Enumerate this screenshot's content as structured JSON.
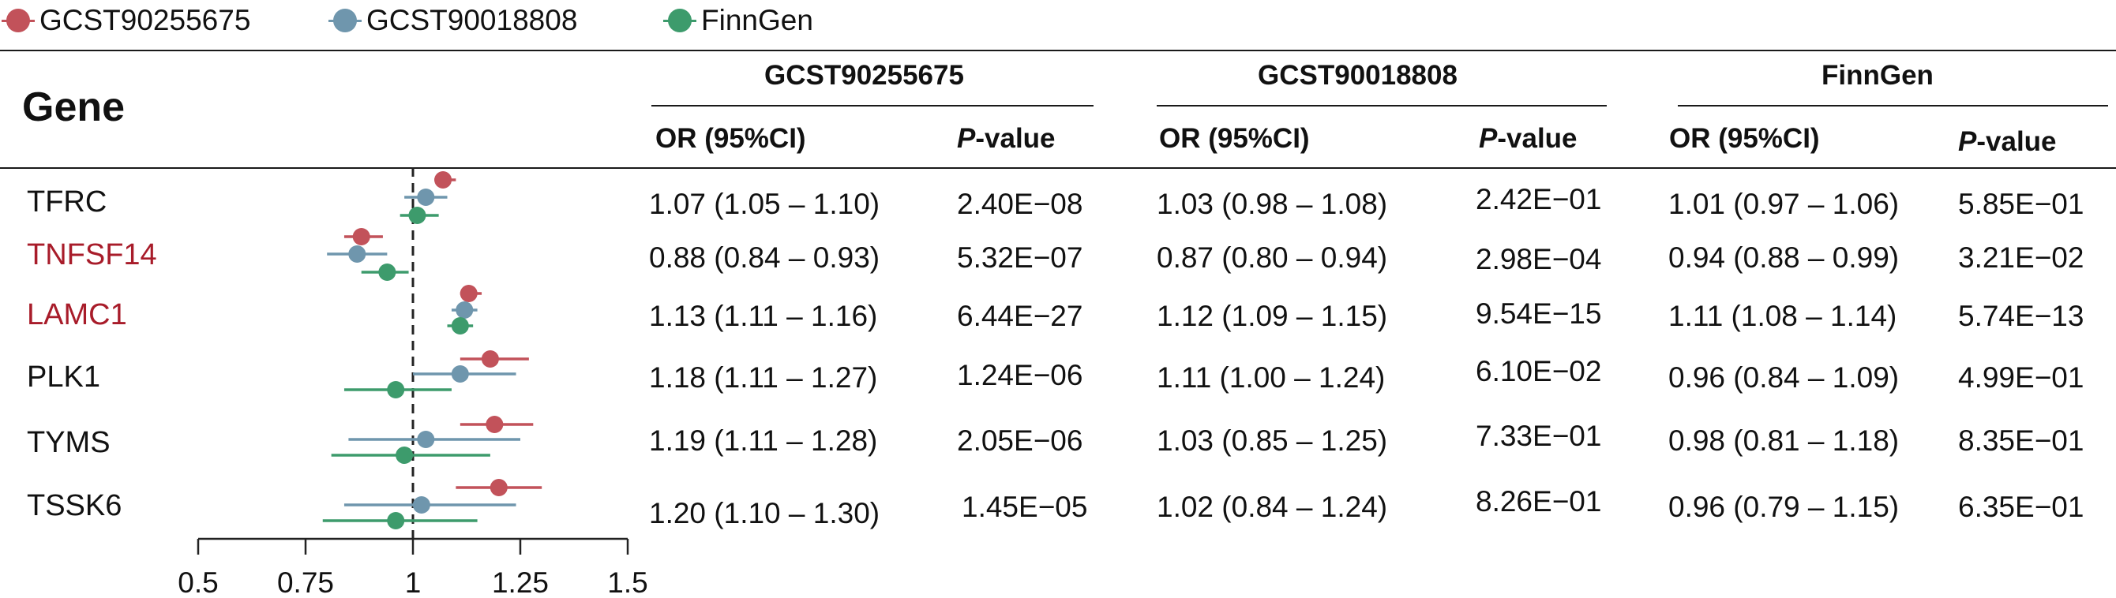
{
  "legend": [
    {
      "label": "GCST90255675",
      "color": "#c2525a"
    },
    {
      "label": "GCST90018808",
      "color": "#6f96ad"
    },
    {
      "label": "FinnGen",
      "color": "#3d9b6c"
    }
  ],
  "header": {
    "gene": "Gene",
    "studies": [
      "GCST90255675",
      "GCST90018808",
      "FinnGen"
    ],
    "or_label": "OR (95%CI)",
    "p_italic": "P",
    "p_rest": "-value"
  },
  "rows": [
    {
      "gene": "TFRC",
      "gene_color": "#111111",
      "cells": [
        [
          "1.07 (1.05 – 1.10)",
          "2.40E−08"
        ],
        [
          "1.03 (0.98 – 1.08)",
          "2.42E−01"
        ],
        [
          "1.01 (0.97 – 1.06)",
          "5.85E−01"
        ]
      ]
    },
    {
      "gene": "TNFSF14",
      "gene_color": "#a81c2a",
      "cells": [
        [
          "0.88 (0.84 – 0.93)",
          "5.32E−07"
        ],
        [
          "0.87 (0.80 – 0.94)",
          "2.98E−04"
        ],
        [
          "0.94 (0.88 – 0.99)",
          "3.21E−02"
        ]
      ]
    },
    {
      "gene": "LAMC1",
      "gene_color": "#a81c2a",
      "cells": [
        [
          "1.13 (1.11 – 1.16)",
          "6.44E−27"
        ],
        [
          "1.12 (1.09 – 1.15)",
          "9.54E−15"
        ],
        [
          "1.11 (1.08 – 1.14)",
          "5.74E−13"
        ]
      ]
    },
    {
      "gene": "PLK1",
      "gene_color": "#111111",
      "cells": [
        [
          "1.18 (1.11 – 1.27)",
          "1.24E−06"
        ],
        [
          "1.11 (1.00 – 1.24)",
          "6.10E−02"
        ],
        [
          "0.96 (0.84 – 1.09)",
          "4.99E−01"
        ]
      ]
    },
    {
      "gene": "TYMS",
      "gene_color": "#111111",
      "cells": [
        [
          "1.19 (1.11 – 1.28)",
          "2.05E−06"
        ],
        [
          "1.03 (0.85 – 1.25)",
          "7.33E−01"
        ],
        [
          "0.98 (0.81 – 1.18)",
          "8.35E−01"
        ]
      ]
    },
    {
      "gene": "TSSK6",
      "gene_color": "#111111",
      "cells": [
        [
          "1.20 (1.10 – 1.30)",
          "1.45E−05"
        ],
        [
          "1.02 (0.84 – 1.24)",
          "8.26E−01"
        ],
        [
          "0.96 (0.79 – 1.15)",
          "6.35E−01"
        ]
      ]
    }
  ],
  "chart_data": {
    "type": "scatter",
    "subtype": "forest-plot",
    "xlim": [
      0.5,
      1.5
    ],
    "xticks": [
      0.5,
      0.75,
      1,
      1.25,
      1.5
    ],
    "xtick_labels": [
      "0.5",
      "0.75",
      "1",
      "1.25",
      "1.5"
    ],
    "reference_line": 1,
    "categories": [
      "TFRC",
      "TNFSF14",
      "LAMC1",
      "PLK1",
      "TYMS",
      "TSSK6"
    ],
    "series": [
      {
        "name": "GCST90255675",
        "color": "#c2525a",
        "or": [
          1.07,
          0.88,
          1.13,
          1.18,
          1.19,
          1.2
        ],
        "lo": [
          1.05,
          0.84,
          1.11,
          1.11,
          1.11,
          1.1
        ],
        "hi": [
          1.1,
          0.93,
          1.16,
          1.27,
          1.28,
          1.3
        ]
      },
      {
        "name": "GCST90018808",
        "color": "#6f96ad",
        "or": [
          1.03,
          0.87,
          1.12,
          1.11,
          1.03,
          1.02
        ],
        "lo": [
          0.98,
          0.8,
          1.09,
          1.0,
          0.85,
          0.84
        ],
        "hi": [
          1.08,
          0.94,
          1.15,
          1.24,
          1.25,
          1.24
        ]
      },
      {
        "name": "FinnGen",
        "color": "#3d9b6c",
        "or": [
          1.01,
          0.94,
          1.11,
          0.96,
          0.98,
          0.96
        ],
        "lo": [
          0.97,
          0.88,
          1.08,
          0.84,
          0.81,
          0.79
        ],
        "hi": [
          1.06,
          0.99,
          1.14,
          1.09,
          1.18,
          1.15
        ]
      }
    ]
  }
}
